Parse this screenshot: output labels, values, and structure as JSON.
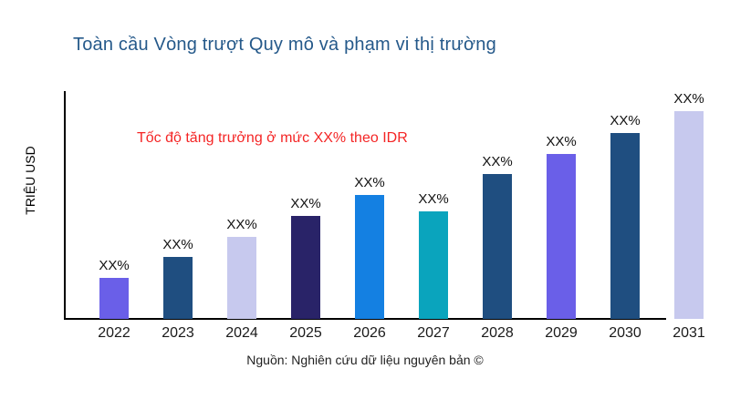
{
  "page": {
    "background": "#ffffff"
  },
  "header": {
    "title": "Toàn cầu Vòng trượt Quy mô và phạm vi thị trường",
    "title_color": "#25598a"
  },
  "annotation": {
    "text": "Tốc độ tăng trưởng ở mức XX% theo IDR",
    "color": "#f42525"
  },
  "axes": {
    "ylabel": "TRIỆU USD",
    "axis_color": "#000000"
  },
  "footer": {
    "source": "Nguồn: Nghiên cứu dữ liệu nguyên bản ©"
  },
  "chart_data": {
    "type": "bar",
    "title": "Toàn cầu Vòng trượt Quy mô và phạm vi thị trường",
    "xlabel": "",
    "ylabel": "TRIỆU USD",
    "categories": [
      "2022",
      "2023",
      "2024",
      "2025",
      "2026",
      "2027",
      "2028",
      "2029",
      "2030",
      "2031"
    ],
    "values": [
      45,
      68,
      90,
      113,
      136,
      118,
      159,
      181,
      204,
      228
    ],
    "value_labels": [
      "XX%",
      "XX%",
      "XX%",
      "XX%",
      "XX%",
      "XX%",
      "XX%",
      "XX%",
      "XX%",
      "XX%"
    ],
    "bar_colors": [
      "#6a5fe8",
      "#1f4e80",
      "#c7c9ee",
      "#292368",
      "#1480e2",
      "#0aa4bd",
      "#1f4e80",
      "#6a5fe8",
      "#1f4e80",
      "#c7c9ee"
    ],
    "ylim": [
      0,
      250
    ],
    "grid": false,
    "legend": false,
    "annotation": "Tốc độ tăng trưởng ở mức XX% theo IDR",
    "source": "Nguồn: Nghiên cứu dữ liệu nguyên bản ©"
  }
}
